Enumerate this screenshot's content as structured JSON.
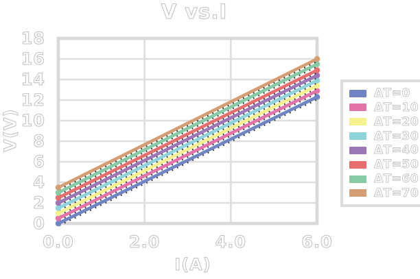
{
  "title": "V vs.I",
  "chart_data": {
    "type": "line",
    "title": "V vs.I",
    "xlabel": "I(A)",
    "ylabel": "V(V)",
    "xlim": [
      0,
      6
    ],
    "ylim": [
      0,
      18
    ],
    "xticks": [
      {
        "value": 0,
        "label": "0.0"
      },
      {
        "value": 2,
        "label": "2.0"
      },
      {
        "value": 4,
        "label": "4.0"
      },
      {
        "value": 6,
        "label": "6.0"
      }
    ],
    "yticks": [
      {
        "value": 0,
        "label": "0"
      },
      {
        "value": 2,
        "label": "2"
      },
      {
        "value": 4,
        "label": "4"
      },
      {
        "value": 6,
        "label": "6"
      },
      {
        "value": 8,
        "label": "8"
      },
      {
        "value": 10,
        "label": "10"
      },
      {
        "value": 12,
        "label": "12"
      },
      {
        "value": 14,
        "label": "14"
      },
      {
        "value": 16,
        "label": "16"
      },
      {
        "value": 18,
        "label": "18"
      }
    ],
    "grid": true,
    "legend_position": "right",
    "series": [
      {
        "name": "ΔT=0",
        "color": "#6F84C4",
        "x": [
          0,
          6
        ],
        "y": [
          0.0,
          12.3
        ]
      },
      {
        "name": "ΔT=10",
        "color": "#E373A9",
        "x": [
          0,
          6
        ],
        "y": [
          0.5,
          12.9
        ]
      },
      {
        "name": "ΔT=20",
        "color": "#F5F18C",
        "x": [
          0,
          6
        ],
        "y": [
          1.0,
          13.4
        ]
      },
      {
        "name": "ΔT=30",
        "color": "#8DD3DC",
        "x": [
          0,
          6
        ],
        "y": [
          1.5,
          13.9
        ]
      },
      {
        "name": "ΔT=40",
        "color": "#9C76B6",
        "x": [
          0,
          6
        ],
        "y": [
          2.0,
          14.4
        ]
      },
      {
        "name": "ΔT=50",
        "color": "#E86D6D",
        "x": [
          0,
          6
        ],
        "y": [
          2.5,
          14.9
        ]
      },
      {
        "name": "ΔT=60",
        "color": "#87CBA5",
        "x": [
          0,
          6
        ],
        "y": [
          3.0,
          15.5
        ]
      },
      {
        "name": "ΔT=70",
        "color": "#D59D72",
        "x": [
          0,
          6
        ],
        "y": [
          3.5,
          16.0
        ]
      }
    ]
  },
  "styles": {
    "background": "#ffffff",
    "grid_color": "#dedede",
    "frame_color": "#d8d8d8",
    "text_outline": "#c2c2c2",
    "marker_edge": "#333333"
  }
}
